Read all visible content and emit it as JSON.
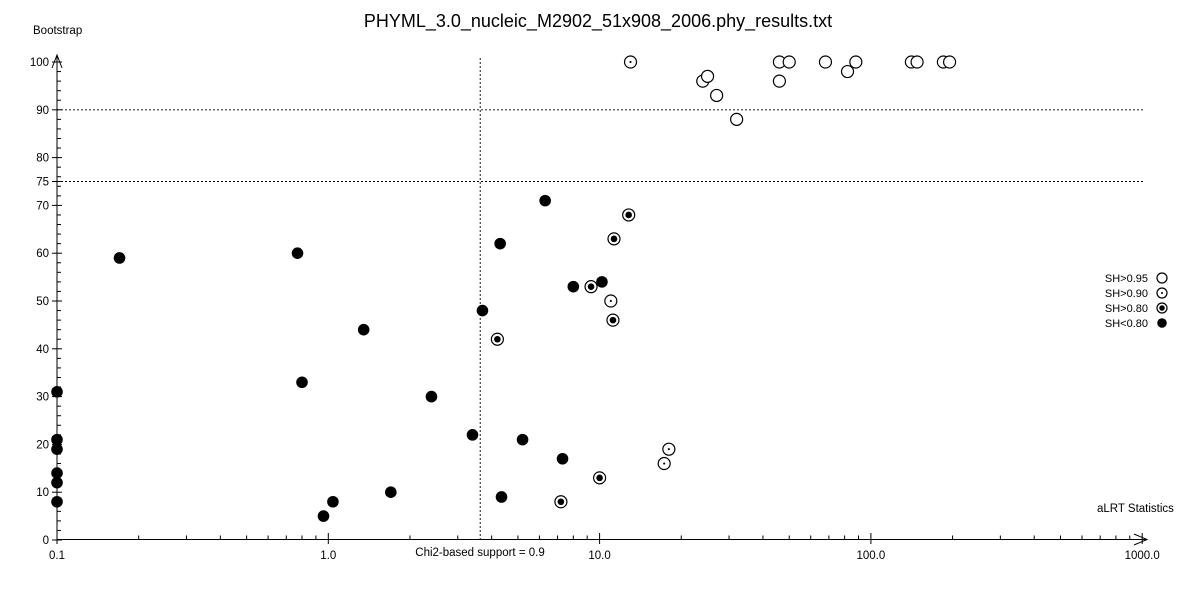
{
  "window": {
    "title": "PHYML_3.0_nucleic_M2902_51x908_2006.phy_results.txt"
  },
  "colors": {
    "foreground": "#000000",
    "background": "#ffffff"
  },
  "chart_data": {
    "type": "scatter",
    "title": "PHYML_3.0_nucleic_M2902_51x908_2006.phy_results.txt",
    "xlabel": "aLRT Statistics",
    "ylabel": "Bootstrap",
    "x_scale": "log",
    "xlim": [
      0.1,
      1000.0
    ],
    "ylim": [
      0,
      100
    ],
    "grid": false,
    "legend_position": "right-middle",
    "x_tick_values": [
      0.1,
      1.0,
      10.0,
      100.0,
      1000.0
    ],
    "x_tick_labels": [
      "0.1",
      "1.0",
      "10.0",
      "100.0",
      "1000.0"
    ],
    "y_tick_values": [
      0,
      10,
      20,
      30,
      40,
      50,
      60,
      70,
      75,
      80,
      90,
      100
    ],
    "y_minor_step": 2,
    "reference_lines": {
      "horizontal_y": [
        90,
        75
      ],
      "vertical_x": 3.63,
      "vertical_label": "Chi2-based support = 0.9"
    },
    "series": [
      {
        "name": "SH>0.95",
        "marker": "open-circle",
        "points": [
          [
            24,
            96
          ],
          [
            25,
            97
          ],
          [
            27,
            93
          ],
          [
            32,
            88
          ],
          [
            46,
            96
          ],
          [
            46,
            100
          ],
          [
            50,
            100
          ],
          [
            68,
            100
          ],
          [
            82,
            98
          ],
          [
            88,
            100
          ],
          [
            141,
            100
          ],
          [
            148,
            100
          ],
          [
            185,
            100
          ],
          [
            195,
            100
          ]
        ]
      },
      {
        "name": "SH>0.90",
        "marker": "circle-small-dot",
        "points": [
          [
            11,
            50
          ],
          [
            13,
            100
          ],
          [
            17.3,
            16
          ],
          [
            18,
            19
          ]
        ]
      },
      {
        "name": "SH>0.80",
        "marker": "circle-large-dot",
        "points": [
          [
            4.2,
            42
          ],
          [
            7.2,
            8
          ],
          [
            9.3,
            53
          ],
          [
            10,
            13
          ],
          [
            11.2,
            46
          ],
          [
            11.3,
            63
          ],
          [
            12.8,
            68
          ]
        ]
      },
      {
        "name": "SH<0.80",
        "marker": "filled-circle",
        "points": [
          [
            0.1,
            8
          ],
          [
            0.1,
            12
          ],
          [
            0.1,
            14
          ],
          [
            0.1,
            19
          ],
          [
            0.1,
            21
          ],
          [
            0.1,
            31
          ],
          [
            0.17,
            59
          ],
          [
            0.77,
            60
          ],
          [
            0.8,
            33
          ],
          [
            0.96,
            5
          ],
          [
            1.04,
            8
          ],
          [
            1.35,
            44
          ],
          [
            1.7,
            10
          ],
          [
            2.4,
            30
          ],
          [
            3.4,
            22
          ],
          [
            3.7,
            48
          ],
          [
            4.3,
            62
          ],
          [
            4.35,
            9
          ],
          [
            5.2,
            21
          ],
          [
            6.3,
            71
          ],
          [
            7.3,
            17
          ],
          [
            8,
            53
          ],
          [
            10.2,
            54
          ]
        ]
      }
    ]
  }
}
